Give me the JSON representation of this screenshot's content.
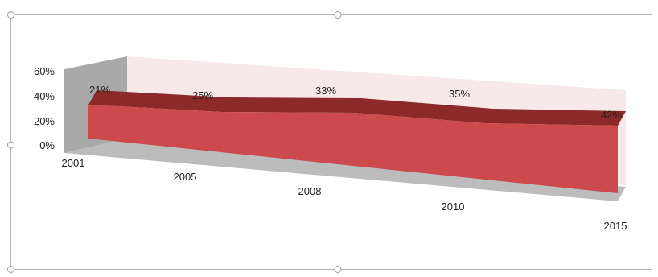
{
  "chart_data": {
    "type": "area",
    "three_d": true,
    "categories": [
      "2001",
      "2005",
      "2008",
      "2010",
      "2015"
    ],
    "values": [
      21,
      25,
      33,
      35,
      42
    ],
    "data_labels": [
      "21%",
      "25%",
      "33%",
      "35%",
      "42%"
    ],
    "y_tick_labels": [
      "0%",
      "20%",
      "40%",
      "60%"
    ],
    "ylim": [
      0,
      60
    ],
    "title": "",
    "xlabel": "",
    "ylabel": "",
    "legend": "none",
    "colors": {
      "series_front": "#cc4a4e",
      "series_top": "#8c2a2a",
      "back_wall": "#f7e9ea",
      "side_wall": "#a9a9a9",
      "floor": "#bcbcbc"
    }
  }
}
